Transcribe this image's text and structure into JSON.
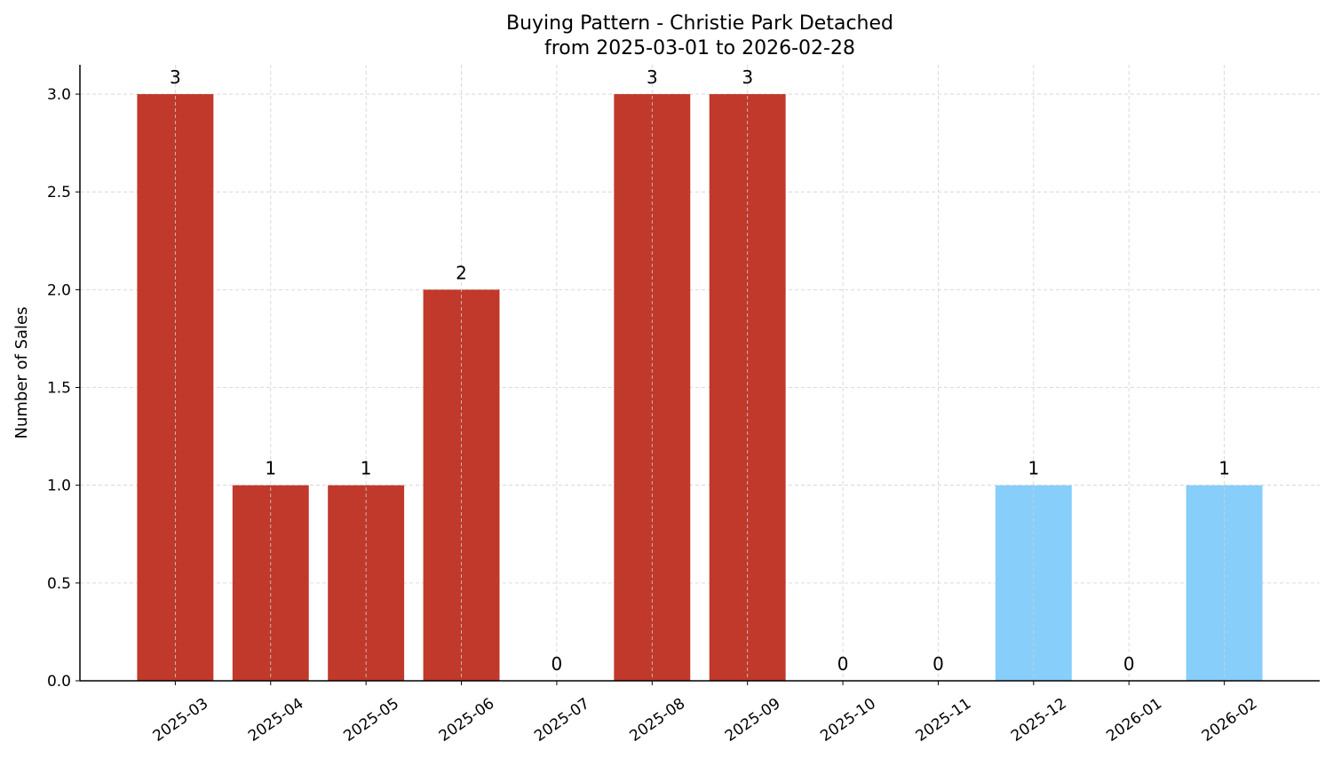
{
  "chart_data": {
    "type": "bar",
    "title": "Buying Pattern - Christie Park Detached",
    "subtitle": "from 2025-03-01 to 2026-02-28",
    "y_label": "Number of Sales",
    "categories": [
      "2025-03",
      "2025-04",
      "2025-05",
      "2025-06",
      "2025-07",
      "2025-08",
      "2025-09",
      "2025-10",
      "2025-11",
      "2025-12",
      "2026-01",
      "2026-02"
    ],
    "values": [
      3,
      1,
      1,
      2,
      0,
      3,
      3,
      0,
      0,
      1,
      0,
      1
    ],
    "colors": [
      "#c0392b",
      "#c0392b",
      "#c0392b",
      "#c0392b",
      "#c0392b",
      "#c0392b",
      "#c0392b",
      "#c0392b",
      "#c0392b",
      "#87cefa",
      "#c0392b",
      "#87cefa"
    ],
    "ylim": [
      0,
      3.15
    ],
    "yticks": [
      {
        "value": 0,
        "label": "0.0"
      },
      0.5,
      {
        "value": 1,
        "label": "1.0"
      },
      1.5,
      {
        "value": 2,
        "label": "2.0"
      },
      2.5,
      {
        "value": 3,
        "label": "3.0"
      }
    ],
    "grid": true
  }
}
